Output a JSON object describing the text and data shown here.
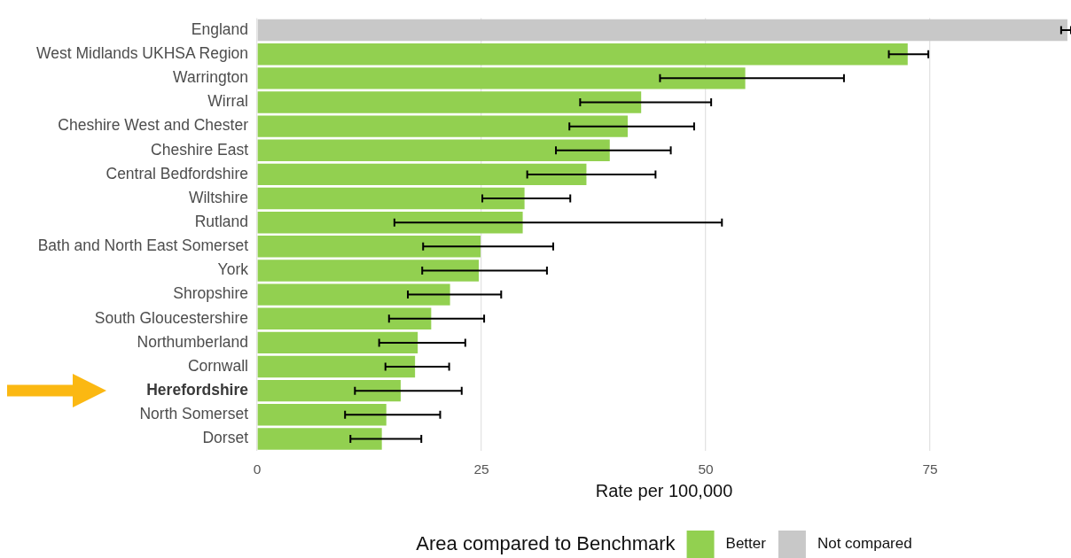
{
  "chart_data": {
    "type": "bar",
    "orientation": "horizontal",
    "stacked": true,
    "categories": [
      "England",
      "West Midlands UKHSA Region",
      "Warrington",
      "Wirral",
      "Cheshire West and Chester",
      "Cheshire East",
      "Central Bedfordshire",
      "Wiltshire",
      "Rutland",
      "Bath and North East Somerset",
      "York",
      "Shropshire",
      "South Gloucestershire",
      "Northumberland",
      "Cornwall",
      "Herefordshire",
      "North Somerset",
      "Dorset"
    ],
    "series": [
      {
        "name": "Better",
        "color": "#92d050",
        "values": [
          null,
          72.5,
          54.4,
          42.8,
          41.3,
          39.3,
          36.7,
          29.8,
          29.6,
          24.9,
          24.7,
          21.5,
          19.4,
          17.9,
          17.6,
          16.0,
          14.4,
          13.9
        ],
        "errors": [
          null,
          [
            70.4,
            74.8
          ],
          [
            44.9,
            65.4
          ],
          [
            36.0,
            50.6
          ],
          [
            34.8,
            48.7
          ],
          [
            33.3,
            46.1
          ],
          [
            30.1,
            44.4
          ],
          [
            25.1,
            34.9
          ],
          [
            15.3,
            51.8
          ],
          [
            18.5,
            33.0
          ],
          [
            18.4,
            32.3
          ],
          [
            16.8,
            27.2
          ],
          [
            14.7,
            25.3
          ],
          [
            13.6,
            23.2
          ],
          [
            14.3,
            21.4
          ],
          [
            10.9,
            22.8
          ],
          [
            9.8,
            20.4
          ],
          [
            10.4,
            18.3
          ]
        ]
      },
      {
        "name": "Not compared",
        "color": "#c8c8c8",
        "values": [
          90.3,
          null,
          null,
          null,
          null,
          null,
          null,
          null,
          null,
          null,
          null,
          null,
          null,
          null,
          null,
          null,
          null,
          null
        ],
        "errors": [
          [
            89.6,
            90.7
          ],
          null,
          null,
          null,
          null,
          null,
          null,
          null,
          null,
          null,
          null,
          null,
          null,
          null,
          null,
          null,
          null,
          null
        ]
      }
    ],
    "xlabel": "Rate per 100,000",
    "legend_title": "Area compared to Benchmark",
    "legend": "bottom",
    "grid": "x",
    "xlim": [
      0,
      90.7
    ],
    "xticks": [
      0,
      25,
      50,
      75
    ]
  }
}
